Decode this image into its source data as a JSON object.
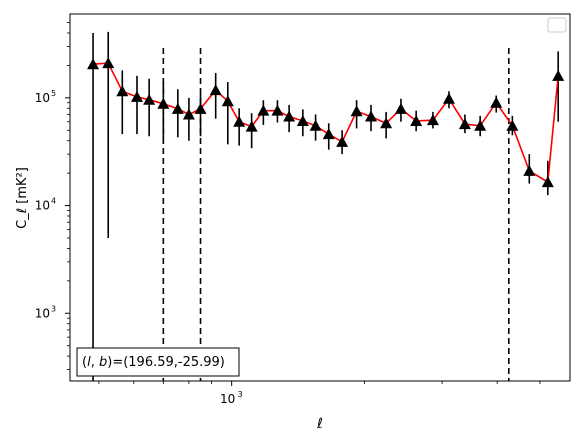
{
  "chart_data": {
    "type": "scatter",
    "xscale": "log",
    "yscale": "log",
    "xlim": [
      430,
      5850
    ],
    "ylim": [
      235,
      600000
    ],
    "xlabel": "ℓ",
    "ylabel": "C_ℓ  [mK²]",
    "x_tick_labels": [
      {
        "value": 1000,
        "base": "10",
        "exp": "3"
      }
    ],
    "y_tick_labels": [
      {
        "value": 1000,
        "base": "10",
        "exp": "3"
      },
      {
        "value": 10000,
        "base": "10",
        "exp": "4"
      },
      {
        "value": 100000,
        "base": "10",
        "exp": "5"
      }
    ],
    "legend": {
      "placement": "top-right",
      "entries": []
    },
    "annotation": "(l, b)=(196.59,-25.99)",
    "annotation_parts": {
      "open": "(",
      "l": "l",
      "comma": ", ",
      "b": "b",
      "close": ")",
      "value": "=(196.59,-25.99)"
    },
    "vlines": [
      700,
      850,
      4250
    ],
    "series": [
      {
        "marker": "triangle",
        "marker_color": "#000000",
        "line_color": "#ff0000",
        "line_style": "solid",
        "errorbar_color": "#000000",
        "x": [
          485,
          525,
          565,
          610,
          650,
          700,
          755,
          800,
          850,
          920,
          980,
          1040,
          1110,
          1180,
          1270,
          1350,
          1450,
          1550,
          1660,
          1780,
          1920,
          2070,
          2240,
          2420,
          2620,
          2860,
          3110,
          3380,
          3660,
          3980,
          4330,
          4730,
          5210,
          5500
        ],
        "y": [
          205000,
          210000,
          115000,
          102000,
          96000,
          88000,
          79000,
          70000,
          79000,
          118000,
          93000,
          60000,
          54000,
          76000,
          76000,
          67000,
          61000,
          55000,
          46000,
          39000,
          75000,
          67000,
          58000,
          79000,
          61000,
          62000,
          98000,
          57000,
          55000,
          90000,
          55000,
          21000,
          16500,
          160000
        ],
        "yerr_lo": [
          215000,
          205000,
          69000,
          56000,
          52000,
          47000,
          36000,
          30000,
          35000,
          54000,
          56000,
          24000,
          20000,
          20000,
          17000,
          19000,
          17000,
          15000,
          13000,
          9000,
          23000,
          18000,
          16000,
          19000,
          12000,
          10000,
          18000,
          10000,
          11000,
          17000,
          10000,
          5000,
          4000,
          100000
        ],
        "yerr_hi": [
          400000,
          410000,
          180000,
          160000,
          150000,
          140000,
          120000,
          100000,
          110000,
          170000,
          140000,
          80000,
          72000,
          95000,
          95000,
          86000,
          78000,
          70000,
          58000,
          50000,
          95000,
          86000,
          74000,
          98000,
          76000,
          74000,
          115000,
          70000,
          68000,
          105000,
          68000,
          30000,
          26000,
          270000
        ]
      }
    ]
  }
}
